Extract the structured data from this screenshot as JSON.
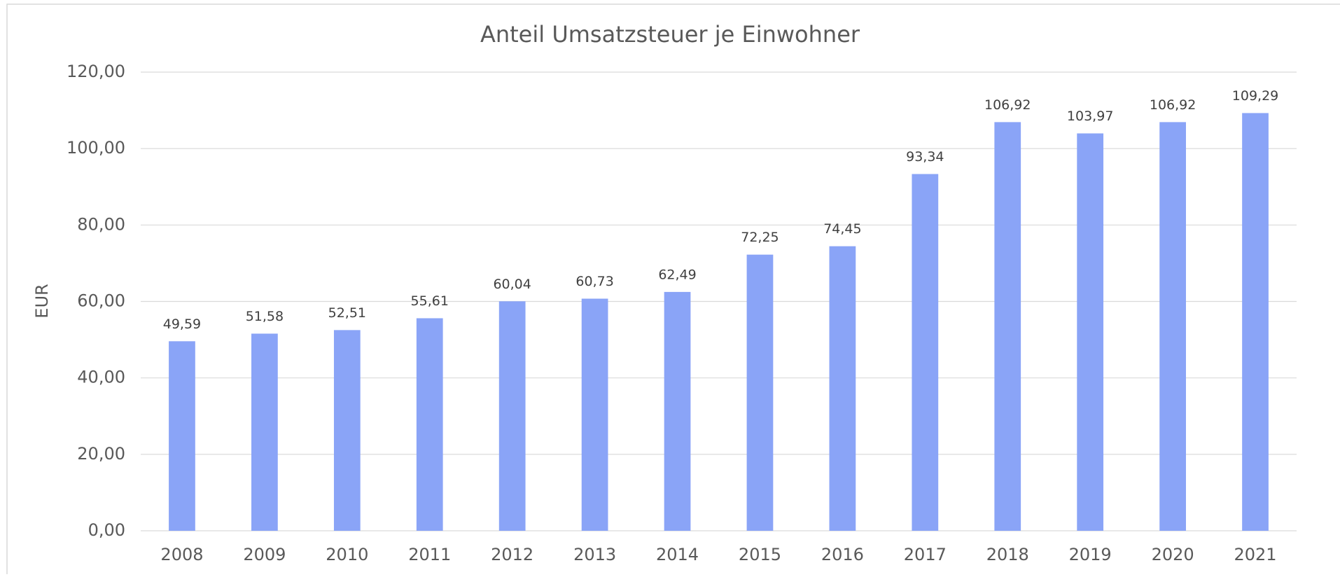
{
  "chart_data": {
    "type": "bar",
    "title": "Anteil Umsatzsteuer je Einwohner",
    "y_label": "EUR",
    "categories": [
      "2008",
      "2009",
      "2010",
      "2011",
      "2012",
      "2013",
      "2014",
      "2015",
      "2016",
      "2017",
      "2018",
      "2019",
      "2020",
      "2021"
    ],
    "values": [
      49.59,
      51.58,
      52.51,
      55.61,
      60.04,
      60.73,
      62.49,
      72.25,
      74.45,
      93.34,
      106.92,
      103.97,
      106.92,
      109.29
    ],
    "value_labels": [
      "49,59",
      "51,58",
      "52,51",
      "55,61",
      "60,04",
      "60,73",
      "62,49",
      "72,25",
      "74,45",
      "93,34",
      "106,92",
      "103,97",
      "106,92",
      "109,29"
    ],
    "color": "#8aa4f7",
    "ylim": [
      0,
      120
    ],
    "yticks": [
      {
        "value": 0,
        "label": "0,00"
      },
      {
        "value": 20,
        "label": "20,00"
      },
      {
        "value": 40,
        "label": "40,00"
      },
      {
        "value": 60,
        "label": "60,00"
      },
      {
        "value": 80,
        "label": "80,00"
      },
      {
        "value": 100,
        "label": "100,00"
      },
      {
        "value": 120,
        "label": "120,00"
      }
    ],
    "grid": true
  }
}
